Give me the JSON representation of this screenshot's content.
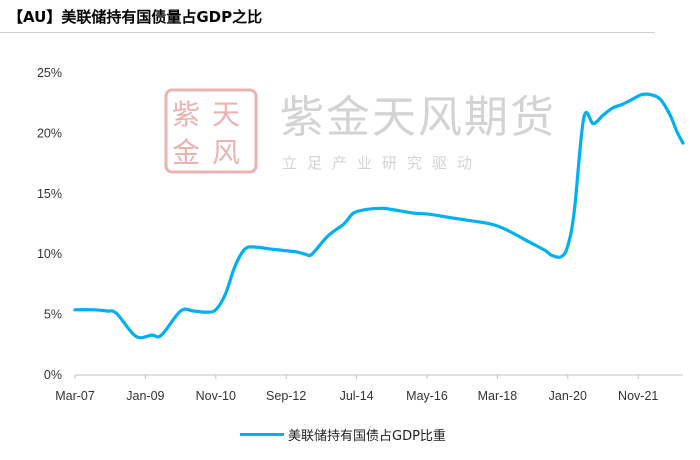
{
  "title": "【AU】美联储持有国债量占GDP之比",
  "watermark": {
    "seal_chars": [
      "紫",
      "天",
      "金",
      "风"
    ],
    "name": "紫金天风期货",
    "slogan": "立足产业研究驱动"
  },
  "chart_data": {
    "type": "line",
    "title": "",
    "xlabel": "",
    "ylabel": "",
    "y_unit": "%",
    "ylim": [
      0,
      25
    ],
    "y_ticks": [
      0,
      5,
      10,
      15,
      20,
      25
    ],
    "y_tick_labels": [
      "0%",
      "5%",
      "10%",
      "15%",
      "20%",
      "25%"
    ],
    "x_range": [
      "2007-03",
      "2023-01"
    ],
    "x_tick_labels": [
      {
        "label": "Mar-07",
        "date": "2007-03"
      },
      {
        "label": "Jan-09",
        "date": "2009-01"
      },
      {
        "label": "Nov-10",
        "date": "2010-11"
      },
      {
        "label": "Sep-12",
        "date": "2012-09"
      },
      {
        "label": "Jul-14",
        "date": "2014-07"
      },
      {
        "label": "May-16",
        "date": "2016-05"
      },
      {
        "label": "Mar-18",
        "date": "2018-03"
      },
      {
        "label": "Jan-20",
        "date": "2020-01"
      },
      {
        "label": "Nov-21",
        "date": "2021-11"
      }
    ],
    "grid": false,
    "legend_position": "bottom-center",
    "series": [
      {
        "name": "美联储持有国债占GDP比重",
        "color": "#00b0f0",
        "points": [
          [
            "2007-03",
            5.4
          ],
          [
            "2007-09",
            5.4
          ],
          [
            "2008-01",
            5.3
          ],
          [
            "2008-04",
            5.1
          ],
          [
            "2008-10",
            3.2
          ],
          [
            "2009-03",
            3.3
          ],
          [
            "2009-06",
            3.3
          ],
          [
            "2009-12",
            5.3
          ],
          [
            "2010-04",
            5.3
          ],
          [
            "2010-08",
            5.2
          ],
          [
            "2010-11",
            5.4
          ],
          [
            "2011-02",
            6.7
          ],
          [
            "2011-05",
            9.0
          ],
          [
            "2011-08",
            10.4
          ],
          [
            "2011-11",
            10.6
          ],
          [
            "2012-05",
            10.4
          ],
          [
            "2012-12",
            10.2
          ],
          [
            "2013-03",
            10.0
          ],
          [
            "2013-05",
            10.0
          ],
          [
            "2013-10",
            11.5
          ],
          [
            "2014-03",
            12.5
          ],
          [
            "2014-06",
            13.4
          ],
          [
            "2014-10",
            13.7
          ],
          [
            "2015-03",
            13.8
          ],
          [
            "2015-06",
            13.7
          ],
          [
            "2016-01",
            13.4
          ],
          [
            "2016-06",
            13.3
          ],
          [
            "2017-01",
            13.0
          ],
          [
            "2017-06",
            12.8
          ],
          [
            "2018-01",
            12.5
          ],
          [
            "2018-06",
            12.0
          ],
          [
            "2019-01",
            11.0
          ],
          [
            "2019-06",
            10.3
          ],
          [
            "2019-08",
            9.9
          ],
          [
            "2019-11",
            9.8
          ],
          [
            "2020-01",
            10.7
          ],
          [
            "2020-03",
            13.5
          ],
          [
            "2020-06",
            21.3
          ],
          [
            "2020-09",
            20.8
          ],
          [
            "2020-12",
            21.5
          ],
          [
            "2021-03",
            22.1
          ],
          [
            "2021-06",
            22.4
          ],
          [
            "2021-09",
            22.8
          ],
          [
            "2021-12",
            23.2
          ],
          [
            "2022-03",
            23.2
          ],
          [
            "2022-06",
            22.8
          ],
          [
            "2022-09",
            21.5
          ],
          [
            "2022-11",
            20.2
          ],
          [
            "2023-01",
            19.2
          ]
        ]
      }
    ]
  }
}
